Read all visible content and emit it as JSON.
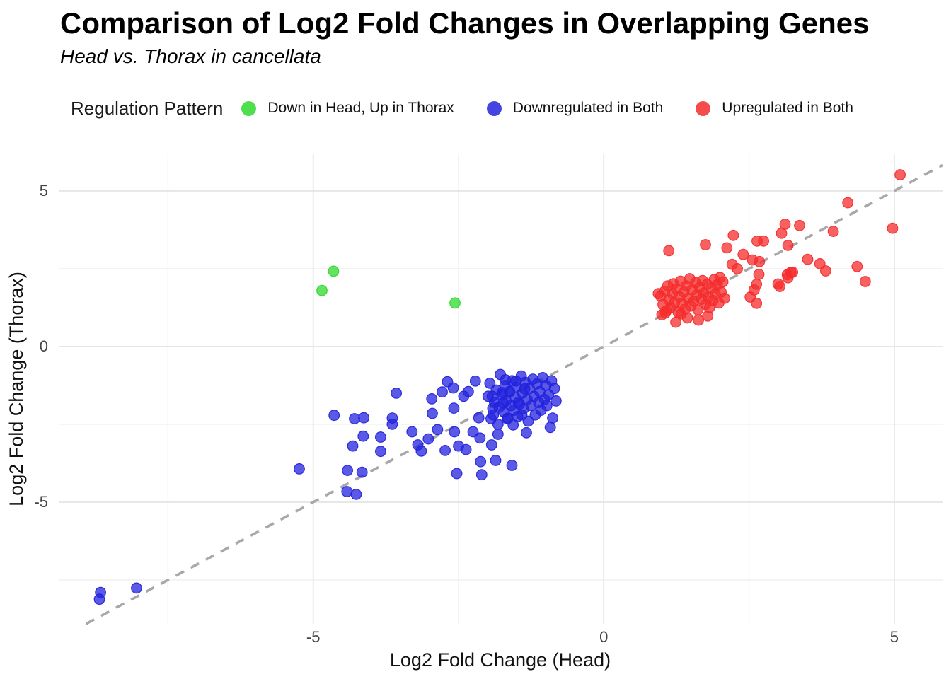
{
  "header": {
    "title": "Comparison of Log2 Fold Changes in Overlapping Genes",
    "subtitle": "Head vs. Thorax in cancellata"
  },
  "chart_data": {
    "type": "scatter",
    "title": "Comparison of Log2 Fold Changes in Overlapping Genes",
    "subtitle": "Head vs. Thorax in cancellata",
    "xlabel": "Log2 Fold Change (Head)",
    "ylabel": "Log2 Fold Change (Thorax)",
    "legend_title": "Regulation Pattern",
    "legend_position": "top",
    "grid": true,
    "xlim": [
      -9.38,
      5.83
    ],
    "ylim": [
      -8.91,
      6.18
    ],
    "x_major_ticks": [
      -5,
      0,
      5
    ],
    "y_major_ticks": [
      -5,
      0,
      5
    ],
    "x_minor_ticks": [
      -7.5,
      -2.5,
      2.5
    ],
    "y_minor_ticks": [
      -7.5,
      -2.5,
      2.5
    ],
    "identity_line": {
      "type": "dashed",
      "equation": "y = x",
      "color": "#a8a8a8"
    },
    "point_opacity": 0.75,
    "series": [
      {
        "name": "Down in Head, Up in Thorax",
        "color": "#2fd82f",
        "points": [
          [
            -4.65,
            2.42
          ],
          [
            -4.85,
            1.8
          ],
          [
            -2.56,
            1.4
          ]
        ]
      },
      {
        "name": "Downregulated in Both",
        "color": "#2323dd",
        "points": [
          [
            -8.66,
            -7.9
          ],
          [
            -8.68,
            -8.12
          ],
          [
            -8.04,
            -7.76
          ],
          [
            -5.24,
            -3.93
          ],
          [
            -4.64,
            -2.21
          ],
          [
            -4.41,
            -3.98
          ],
          [
            -4.42,
            -4.66
          ],
          [
            -4.26,
            -4.75
          ],
          [
            -4.29,
            -2.32
          ],
          [
            -4.32,
            -3.2
          ],
          [
            -4.13,
            -2.29
          ],
          [
            -4.14,
            -2.88
          ],
          [
            -4.16,
            -4.04
          ],
          [
            -3.84,
            -2.91
          ],
          [
            -3.84,
            -3.37
          ],
          [
            -3.64,
            -2.5
          ],
          [
            -3.64,
            -2.3
          ],
          [
            -3.57,
            -1.5
          ],
          [
            -3.3,
            -2.74
          ],
          [
            -3.2,
            -3.16
          ],
          [
            -3.14,
            -3.36
          ],
          [
            -3.02,
            -2.97
          ],
          [
            -2.96,
            -1.68
          ],
          [
            -2.95,
            -2.15
          ],
          [
            -2.86,
            -2.67
          ],
          [
            -2.78,
            -1.46
          ],
          [
            -2.73,
            -3.34
          ],
          [
            -2.69,
            -1.13
          ],
          [
            -2.59,
            -1.33
          ],
          [
            -2.58,
            -1.98
          ],
          [
            -2.57,
            -2.74
          ],
          [
            -2.53,
            -4.08
          ],
          [
            -2.5,
            -3.2
          ],
          [
            -2.41,
            -1.6
          ],
          [
            -2.37,
            -3.31
          ],
          [
            -2.33,
            -1.45
          ],
          [
            -2.25,
            -2.74
          ],
          [
            -2.21,
            -1.11
          ],
          [
            -2.15,
            -2.29
          ],
          [
            -2.13,
            -2.94
          ],
          [
            -2.12,
            -3.7
          ],
          [
            -2.1,
            -4.12
          ],
          [
            -1.99,
            -1.6
          ],
          [
            -1.96,
            -1.18
          ],
          [
            -1.94,
            -2.32
          ],
          [
            -1.93,
            -3.16
          ],
          [
            -1.91,
            -1.98
          ],
          [
            -1.86,
            -3.66
          ],
          [
            -1.82,
            -2.82
          ],
          [
            -1.75,
            -1.48
          ],
          [
            -1.73,
            -1.82
          ],
          [
            -1.69,
            -1.07
          ],
          [
            -1.66,
            -2.32
          ],
          [
            -1.62,
            -1.45
          ],
          [
            -1.58,
            -3.82
          ],
          [
            -1.56,
            -2.52
          ],
          [
            -1.51,
            -1.11
          ],
          [
            -1.47,
            -1.8
          ],
          [
            -1.41,
            -2.2
          ],
          [
            -1.36,
            -1.36
          ],
          [
            -1.33,
            -2.77
          ],
          [
            -0.85,
            -1.35
          ],
          [
            -0.9,
            -1.1
          ],
          [
            -0.95,
            -1.55
          ],
          [
            -0.98,
            -1.9
          ],
          [
            -1.0,
            -1.25
          ],
          [
            -1.02,
            -1.7
          ],
          [
            -1.05,
            -1.0
          ],
          [
            -1.08,
            -2.05
          ],
          [
            -1.1,
            -1.45
          ],
          [
            -1.12,
            -1.8
          ],
          [
            -1.15,
            -1.2
          ],
          [
            -1.18,
            -2.2
          ],
          [
            -1.2,
            -1.6
          ],
          [
            -1.22,
            -1.05
          ],
          [
            -1.25,
            -1.9
          ],
          [
            -1.28,
            -1.35
          ],
          [
            -1.3,
            -2.4
          ],
          [
            -1.32,
            -1.7
          ],
          [
            -1.35,
            -1.15
          ],
          [
            -1.38,
            -2.0
          ],
          [
            -1.4,
            -1.5
          ],
          [
            -1.42,
            -0.95
          ],
          [
            -1.45,
            -1.85
          ],
          [
            -1.48,
            -2.25
          ],
          [
            -1.5,
            -1.3
          ],
          [
            -1.52,
            -1.65
          ],
          [
            -1.55,
            -2.05
          ],
          [
            -1.58,
            -1.1
          ],
          [
            -1.6,
            -1.9
          ],
          [
            -1.62,
            -1.45
          ],
          [
            -1.65,
            -2.3
          ],
          [
            -1.68,
            -1.75
          ],
          [
            -1.7,
            -1.25
          ],
          [
            -1.72,
            -2.1
          ],
          [
            -1.75,
            -1.55
          ],
          [
            -1.78,
            -0.9
          ],
          [
            -1.8,
            -1.95
          ],
          [
            -1.82,
            -2.5
          ],
          [
            -1.85,
            -1.4
          ],
          [
            -1.88,
            -1.8
          ],
          [
            -1.9,
            -2.2
          ],
          [
            -1.92,
            -1.6
          ],
          [
            -0.82,
            -1.75
          ],
          [
            -0.88,
            -2.3
          ],
          [
            -0.92,
            -2.6
          ]
        ]
      },
      {
        "name": "Upregulated in Both",
        "color": "#f52c2c",
        "points": [
          [
            0.98,
            1.62
          ],
          [
            1.02,
            1.35
          ],
          [
            1.05,
            1.78
          ],
          [
            1.08,
            1.15
          ],
          [
            1.1,
            1.95
          ],
          [
            1.12,
            1.5
          ],
          [
            1.15,
            1.25
          ],
          [
            1.18,
            1.7
          ],
          [
            1.2,
            2.02
          ],
          [
            1.22,
            1.42
          ],
          [
            1.25,
            1.85
          ],
          [
            1.28,
            1.1
          ],
          [
            1.3,
            1.6
          ],
          [
            1.32,
            2.1
          ],
          [
            1.35,
            1.38
          ],
          [
            1.38,
            1.75
          ],
          [
            1.4,
            1.2
          ],
          [
            1.42,
            1.95
          ],
          [
            1.45,
            1.55
          ],
          [
            1.48,
            2.18
          ],
          [
            1.5,
            1.3
          ],
          [
            1.52,
            1.82
          ],
          [
            1.55,
            1.45
          ],
          [
            1.58,
            2.05
          ],
          [
            1.6,
            1.65
          ],
          [
            1.62,
            1.18
          ],
          [
            1.65,
            1.9
          ],
          [
            1.68,
            1.52
          ],
          [
            1.7,
            2.12
          ],
          [
            1.72,
            1.72
          ],
          [
            1.75,
            1.35
          ],
          [
            1.78,
            2.0
          ],
          [
            1.8,
            1.58
          ],
          [
            1.82,
            1.25
          ],
          [
            1.85,
            1.88
          ],
          [
            1.88,
            1.48
          ],
          [
            1.9,
            2.15
          ],
          [
            1.92,
            1.68
          ],
          [
            1.95,
            1.98
          ],
          [
            1.98,
            1.4
          ],
          [
            2.0,
            2.22
          ],
          [
            2.02,
            1.75
          ],
          [
            2.05,
            2.08
          ],
          [
            2.08,
            1.55
          ],
          [
            1.24,
            0.78
          ],
          [
            1.44,
            0.92
          ],
          [
            1.63,
            0.85
          ],
          [
            1.79,
            0.98
          ],
          [
            1.33,
            1.05
          ],
          [
            1.06,
            1.08
          ],
          [
            1.0,
            1.02
          ],
          [
            0.94,
            1.7
          ],
          [
            1.12,
            3.08
          ],
          [
            2.63,
            1.39
          ],
          [
            2.12,
            3.17
          ],
          [
            2.23,
            3.57
          ],
          [
            1.75,
            3.27
          ],
          [
            2.4,
            2.96
          ],
          [
            2.56,
            2.78
          ],
          [
            2.21,
            2.64
          ],
          [
            2.64,
            3.39
          ],
          [
            2.68,
            2.73
          ],
          [
            2.67,
            2.32
          ],
          [
            2.63,
            2.0
          ],
          [
            2.59,
            1.82
          ],
          [
            2.75,
            3.39
          ],
          [
            3.12,
            3.93
          ],
          [
            3.06,
            3.64
          ],
          [
            3.37,
            3.89
          ],
          [
            3.17,
            3.25
          ],
          [
            3.25,
            2.39
          ],
          [
            3.17,
            2.21
          ],
          [
            3.03,
            1.93
          ],
          [
            3.0,
            2.01
          ],
          [
            3.16,
            2.31
          ],
          [
            3.22,
            2.38
          ],
          [
            3.51,
            2.8
          ],
          [
            3.72,
            2.66
          ],
          [
            3.82,
            2.43
          ],
          [
            3.95,
            3.7
          ],
          [
            4.36,
            2.57
          ],
          [
            4.5,
            2.09
          ],
          [
            4.2,
            4.62
          ],
          [
            4.97,
            3.8
          ],
          [
            5.1,
            5.52
          ],
          [
            2.52,
            1.59
          ],
          [
            2.3,
            2.5
          ]
        ]
      }
    ]
  }
}
